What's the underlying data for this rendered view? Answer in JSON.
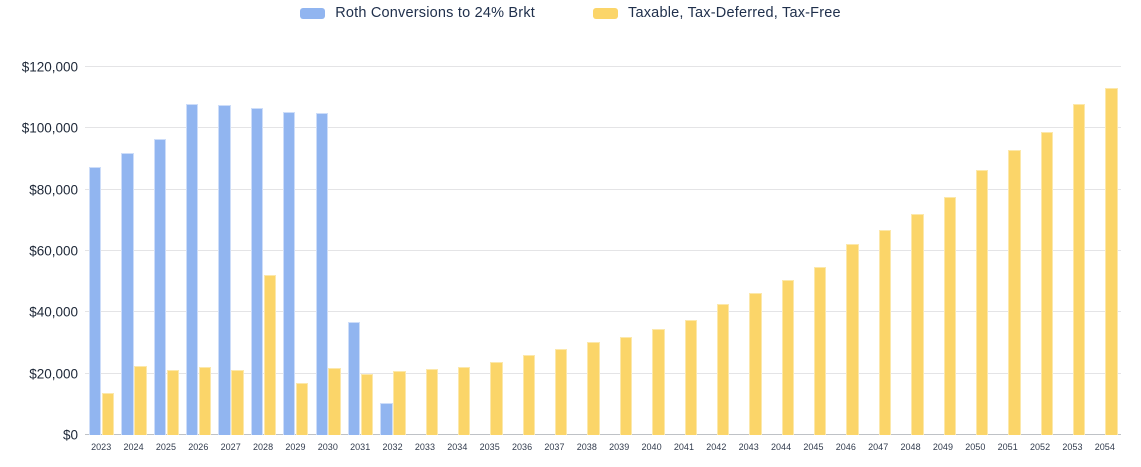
{
  "chart_data": {
    "type": "bar",
    "title": "",
    "xlabel": "",
    "ylabel": "",
    "categories": [
      "2023",
      "2024",
      "2025",
      "2026",
      "2027",
      "2028",
      "2029",
      "2030",
      "2031",
      "2032",
      "2033",
      "2034",
      "2035",
      "2036",
      "2037",
      "2038",
      "2039",
      "2040",
      "2041",
      "2042",
      "2043",
      "2044",
      "2045",
      "2046",
      "2047",
      "2048",
      "2049",
      "2050",
      "2051",
      "2052",
      "2053",
      "2054"
    ],
    "series": [
      {
        "name": "Roth Conversions to 24% Brkt",
        "color": "#91b5f0",
        "border_color": "#cdddf9",
        "values": [
          87500,
          92000,
          96500,
          107800,
          107500,
          106600,
          105200,
          105000,
          37000,
          10500,
          null,
          null,
          null,
          null,
          null,
          null,
          null,
          null,
          null,
          null,
          null,
          null,
          null,
          null,
          null,
          null,
          null,
          null,
          null,
          null,
          null,
          null
        ]
      },
      {
        "name": "Taxable, Tax-Deferred, Tax-Free",
        "color": "#fbd569",
        "border_color": "#fce8ab",
        "values": [
          13600,
          22600,
          21200,
          22100,
          21200,
          52300,
          17100,
          21700,
          20000,
          21000,
          21400,
          22300,
          23900,
          26000,
          28100,
          30400,
          31900,
          34600,
          37500,
          42700,
          46300,
          50600,
          54800,
          62200,
          67000,
          72100,
          77600,
          86500,
          93000,
          98800,
          107800,
          113000
        ]
      }
    ],
    "ylim": [
      0,
      120000
    ],
    "ytick_step": 20000,
    "ytick_labels": [
      "$0",
      "$20,000",
      "$40,000",
      "$60,000",
      "$80,000",
      "$100,000",
      "$120,000"
    ],
    "grid": true,
    "legend_position": "top-center"
  }
}
